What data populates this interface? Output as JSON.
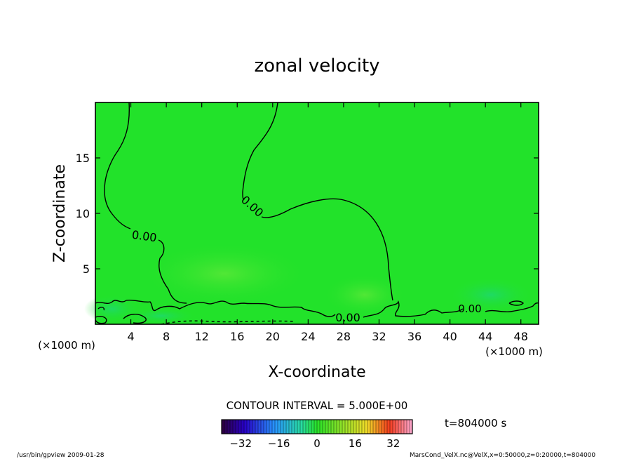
{
  "chart_data": {
    "type": "heatmap",
    "title": "zonal velocity",
    "xlabel": "X-coordinate",
    "ylabel": "Z-coordinate",
    "x_unit_left": "(×1000 m)",
    "x_unit_right": "(×1000 m)",
    "xlim": [
      0,
      50
    ],
    "ylim": [
      0,
      20
    ],
    "x_ticks": [
      4,
      8,
      12,
      16,
      20,
      24,
      28,
      32,
      36,
      40,
      44,
      48
    ],
    "y_ticks": [
      5,
      10,
      15
    ],
    "contour_interval_text": "CONTOUR INTERVAL = 5.000E+00",
    "contour_labels": [
      "0.00",
      "0.00",
      "0.00",
      "0.00"
    ],
    "time_text": "t=804000 s",
    "colorbar_ticks": [
      -32,
      -16,
      0,
      16,
      32
    ],
    "colorbar_range": [
      -40,
      40
    ],
    "field_color": "#22e22a",
    "footer_left": "/usr/bin/gpview   2009-01-28",
    "footer_right": "MarsCond_VelX.nc@VelX,x=0:50000,z=0:20000,t=804000"
  }
}
